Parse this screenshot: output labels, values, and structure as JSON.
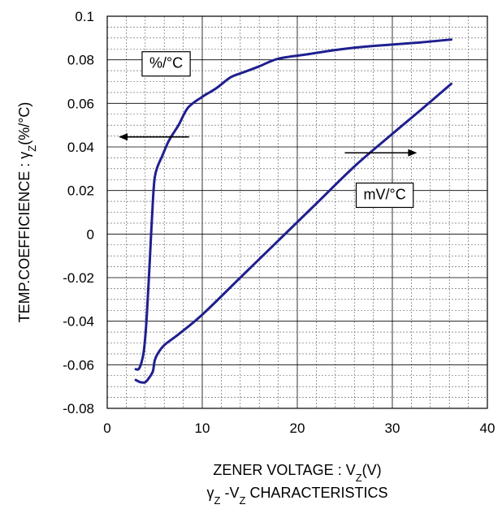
{
  "chart_data": {
    "type": "line",
    "xlabel": "ZENER VOLTAGE : V",
    "xlabel_sub": "Z",
    "xlabel_tail": "(V)",
    "ylabel": "TEMP.COEFFICIENCE : γ",
    "ylabel_sub": "Z",
    "ylabel_tail": "(%/°C)",
    "title_part1": "γ",
    "title_sub1": "Z",
    "title_part2": " -V",
    "title_sub2": "Z",
    "title_part3": " CHARACTERISTICS",
    "xlim": [
      0,
      40
    ],
    "ylim": [
      -0.08,
      0.1
    ],
    "x_ticks": [
      "0",
      "10",
      "20",
      "30",
      "40"
    ],
    "y_ticks": [
      "-0.08",
      "-0.06",
      "-0.04",
      "-0.02",
      "0",
      "0.02",
      "0.04",
      "0.06",
      "0.08",
      "0.1"
    ],
    "x_tick_values": [
      0,
      10,
      20,
      30,
      40
    ],
    "y_tick_values": [
      -0.08,
      -0.06,
      -0.04,
      -0.02,
      0,
      0.02,
      0.04,
      0.06,
      0.08,
      0.1
    ],
    "grid": true,
    "line_color": "#1f1f8f",
    "series": [
      {
        "name": "%/°C",
        "axis": "left",
        "x": [
          3.0,
          3.3,
          3.6,
          3.9,
          4.2,
          4.5,
          4.8,
          5.0,
          5.3,
          5.8,
          6.5,
          7.5,
          8.5,
          10,
          11.5,
          13,
          14.5,
          16,
          18,
          21,
          24,
          27,
          30,
          33,
          36.2
        ],
        "y": [
          -0.062,
          -0.062,
          -0.059,
          -0.052,
          -0.035,
          -0.01,
          0.015,
          0.026,
          0.031,
          0.036,
          0.043,
          0.05,
          0.058,
          0.063,
          0.067,
          0.072,
          0.0745,
          0.077,
          0.0805,
          0.0825,
          0.0845,
          0.086,
          0.087,
          0.088,
          0.0893
        ]
      },
      {
        "name": "mV/°C",
        "axis": "right",
        "x": [
          3.0,
          3.5,
          4.0,
          4.4,
          4.8,
          5.0,
          5.3,
          6.0,
          7.5,
          10,
          14,
          18,
          22,
          26,
          30,
          33,
          36.2
        ],
        "y": [
          -0.067,
          -0.068,
          -0.068,
          -0.066,
          -0.063,
          -0.058,
          -0.055,
          -0.051,
          -0.046,
          -0.037,
          -0.02,
          -0.003,
          0.014,
          0.031,
          0.046,
          0.057,
          0.069
        ]
      }
    ],
    "annotations": [
      {
        "text": "%/°C",
        "x": 6.2,
        "y": 0.0785
      },
      {
        "text": "mV/°C",
        "x": 29.2,
        "y": 0.0182
      }
    ],
    "arrows": [
      {
        "from": [
          8.6,
          0.0446
        ],
        "to": [
          1.2,
          0.0446
        ]
      },
      {
        "from": [
          25.0,
          0.0373
        ],
        "to": [
          32.6,
          0.0373
        ]
      }
    ]
  }
}
